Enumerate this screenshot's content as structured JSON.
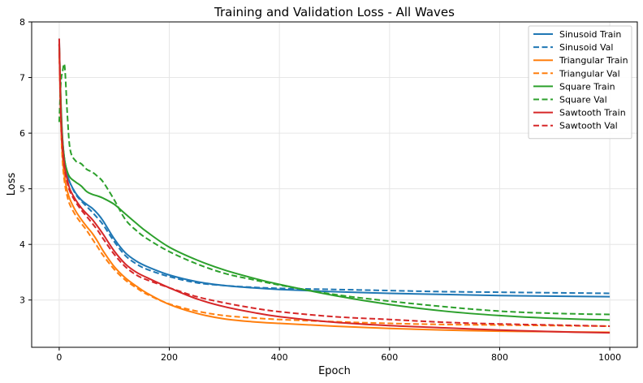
{
  "chart_data": {
    "type": "line",
    "title": "Training and Validation Loss - All Waves",
    "xlabel": "Epoch",
    "ylabel": "Loss",
    "xlim": [
      -50,
      1050
    ],
    "ylim": [
      2.15,
      8.0
    ],
    "xticks": [
      0,
      200,
      400,
      600,
      800,
      1000
    ],
    "yticks": [
      3,
      4,
      5,
      6,
      7,
      8
    ],
    "grid": true,
    "legend_position": "top-right",
    "series": [
      {
        "name": "Sinusoid Train",
        "color": "#1f77b4",
        "dash": "solid",
        "x": [
          0,
          3,
          6,
          10,
          15,
          20,
          30,
          40,
          50,
          60,
          70,
          80,
          100,
          120,
          140,
          160,
          200,
          250,
          300,
          350,
          400,
          500,
          600,
          700,
          800,
          900,
          1000
        ],
        "y": [
          7.7,
          6.5,
          5.9,
          5.5,
          5.25,
          5.1,
          4.92,
          4.8,
          4.72,
          4.65,
          4.55,
          4.42,
          4.1,
          3.85,
          3.7,
          3.6,
          3.45,
          3.33,
          3.26,
          3.22,
          3.19,
          3.15,
          3.12,
          3.1,
          3.08,
          3.07,
          3.06
        ]
      },
      {
        "name": "Sinusoid Val",
        "color": "#1f77b4",
        "dash": "dashed",
        "x": [
          0,
          3,
          6,
          10,
          15,
          20,
          30,
          40,
          50,
          60,
          70,
          80,
          100,
          120,
          140,
          160,
          200,
          250,
          300,
          350,
          400,
          500,
          600,
          700,
          800,
          900,
          1000
        ],
        "y": [
          7.6,
          6.4,
          5.85,
          5.5,
          5.25,
          5.1,
          4.9,
          4.78,
          4.68,
          4.58,
          4.47,
          4.35,
          4.05,
          3.8,
          3.65,
          3.55,
          3.42,
          3.31,
          3.26,
          3.23,
          3.21,
          3.19,
          3.17,
          3.15,
          3.14,
          3.13,
          3.12
        ]
      },
      {
        "name": "Triangular Train",
        "color": "#ff7f0e",
        "dash": "solid",
        "x": [
          0,
          3,
          6,
          10,
          15,
          20,
          30,
          40,
          50,
          60,
          70,
          80,
          100,
          120,
          140,
          160,
          200,
          250,
          300,
          350,
          400,
          500,
          600,
          700,
          800,
          900,
          1000
        ],
        "y": [
          7.6,
          6.3,
          5.6,
          5.2,
          4.95,
          4.8,
          4.6,
          4.45,
          4.32,
          4.2,
          4.05,
          3.88,
          3.6,
          3.4,
          3.25,
          3.12,
          2.92,
          2.76,
          2.66,
          2.61,
          2.58,
          2.53,
          2.49,
          2.46,
          2.44,
          2.43,
          2.42
        ]
      },
      {
        "name": "Triangular Val",
        "color": "#ff7f0e",
        "dash": "dashed",
        "x": [
          0,
          3,
          6,
          10,
          15,
          20,
          30,
          40,
          50,
          60,
          70,
          80,
          100,
          120,
          140,
          160,
          200,
          250,
          300,
          350,
          400,
          500,
          600,
          700,
          800,
          900,
          1000
        ],
        "y": [
          7.5,
          6.2,
          5.5,
          5.1,
          4.85,
          4.7,
          4.52,
          4.38,
          4.25,
          4.1,
          3.95,
          3.8,
          3.55,
          3.36,
          3.22,
          3.1,
          2.93,
          2.8,
          2.72,
          2.68,
          2.65,
          2.61,
          2.58,
          2.56,
          2.55,
          2.54,
          2.53
        ]
      },
      {
        "name": "Square Train",
        "color": "#2ca02c",
        "dash": "solid",
        "x": [
          0,
          3,
          6,
          10,
          15,
          20,
          30,
          40,
          50,
          60,
          70,
          80,
          100,
          120,
          140,
          160,
          200,
          250,
          300,
          350,
          400,
          500,
          600,
          700,
          800,
          900,
          1000
        ],
        "y": [
          7.6,
          6.6,
          5.9,
          5.5,
          5.3,
          5.2,
          5.12,
          5.05,
          4.95,
          4.9,
          4.87,
          4.83,
          4.72,
          4.55,
          4.38,
          4.22,
          3.95,
          3.72,
          3.54,
          3.4,
          3.28,
          3.08,
          2.92,
          2.8,
          2.72,
          2.67,
          2.64
        ]
      },
      {
        "name": "Square Val",
        "color": "#2ca02c",
        "dash": "dashed",
        "x": [
          0,
          3,
          6,
          10,
          15,
          20,
          30,
          40,
          50,
          60,
          70,
          80,
          100,
          120,
          140,
          160,
          200,
          250,
          300,
          350,
          400,
          500,
          600,
          700,
          800,
          900,
          1000
        ],
        "y": [
          6.2,
          6.9,
          7.1,
          7.2,
          6.3,
          5.7,
          5.5,
          5.45,
          5.35,
          5.3,
          5.22,
          5.12,
          4.8,
          4.45,
          4.25,
          4.1,
          3.87,
          3.65,
          3.48,
          3.37,
          3.27,
          3.1,
          2.98,
          2.88,
          2.8,
          2.76,
          2.74
        ]
      },
      {
        "name": "Sawtooth Train",
        "color": "#d62728",
        "dash": "solid",
        "x": [
          0,
          3,
          6,
          10,
          15,
          20,
          30,
          40,
          50,
          60,
          70,
          80,
          100,
          120,
          140,
          160,
          200,
          250,
          300,
          350,
          400,
          500,
          600,
          700,
          800,
          900,
          1000
        ],
        "y": [
          7.7,
          6.4,
          5.8,
          5.4,
          5.15,
          4.98,
          4.8,
          4.66,
          4.55,
          4.45,
          4.32,
          4.18,
          3.88,
          3.65,
          3.5,
          3.4,
          3.22,
          3.02,
          2.88,
          2.78,
          2.7,
          2.6,
          2.54,
          2.5,
          2.46,
          2.43,
          2.41
        ]
      },
      {
        "name": "Sawtooth Val",
        "color": "#d62728",
        "dash": "dashed",
        "x": [
          0,
          3,
          6,
          10,
          15,
          20,
          30,
          40,
          50,
          60,
          70,
          80,
          100,
          120,
          140,
          160,
          200,
          250,
          300,
          350,
          400,
          500,
          600,
          700,
          800,
          900,
          1000
        ],
        "y": [
          7.6,
          6.3,
          5.7,
          5.35,
          5.1,
          4.94,
          4.76,
          4.62,
          4.5,
          4.38,
          4.25,
          4.1,
          3.82,
          3.6,
          3.45,
          3.36,
          3.22,
          3.06,
          2.95,
          2.86,
          2.79,
          2.7,
          2.65,
          2.6,
          2.57,
          2.55,
          2.53
        ]
      }
    ]
  }
}
